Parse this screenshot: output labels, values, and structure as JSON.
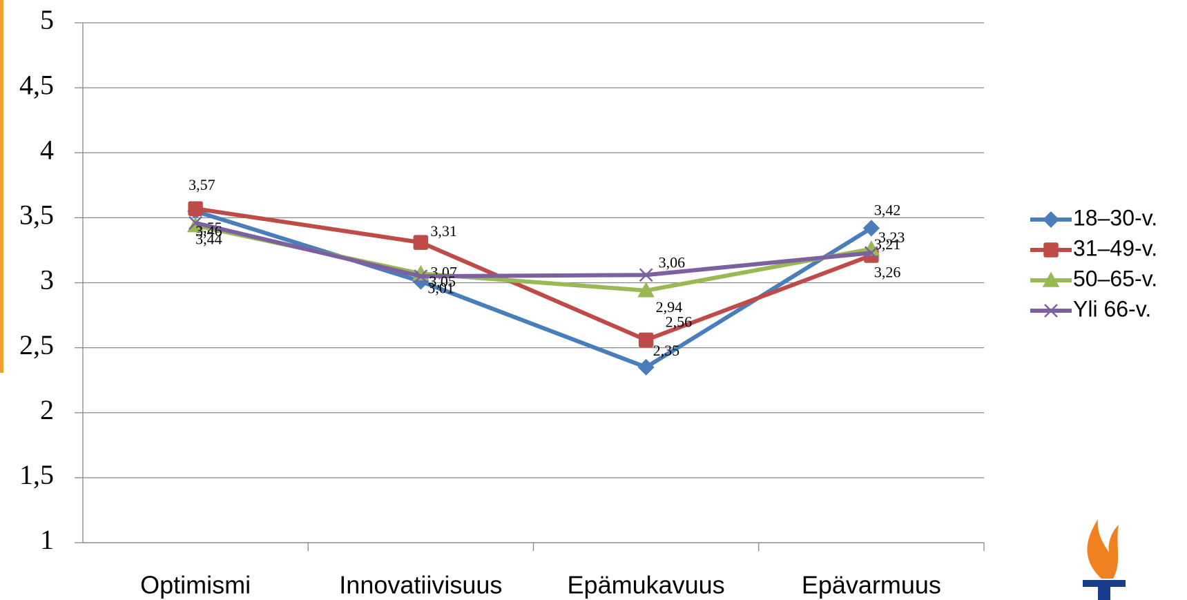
{
  "chart_data": {
    "type": "line",
    "categories": [
      "Optimismi",
      "Innovatiivisuus",
      "Epämukavuus",
      "Epävarmuus"
    ],
    "series": [
      {
        "name": "18–30-v.",
        "color": "#4a7ebb",
        "marker": "diamond",
        "values": [
          3.55,
          3.01,
          2.35,
          3.42
        ],
        "value_labels": [
          "3,55",
          "3,01",
          "2,35",
          "3,42"
        ]
      },
      {
        "name": "31–49-v.",
        "color": "#be4b48",
        "marker": "square",
        "values": [
          3.57,
          3.31,
          2.56,
          3.21
        ],
        "value_labels": [
          "3,57",
          "3,31",
          "2,56",
          "3,21"
        ]
      },
      {
        "name": "50–65-v.",
        "color": "#98b954",
        "marker": "triangle",
        "values": [
          3.44,
          3.07,
          2.94,
          3.26
        ],
        "value_labels": [
          "3,44",
          "3,07",
          "2,94",
          "3,26"
        ]
      },
      {
        "name": "Yli 66-v.",
        "color": "#7d60a0",
        "marker": "x",
        "values": [
          3.46,
          3.05,
          3.06,
          3.23
        ],
        "value_labels": [
          "3,46",
          "3,05",
          "3,06",
          "3,23"
        ]
      }
    ],
    "ylim": [
      1,
      5
    ],
    "yticks": [
      1,
      {
        "value": 1.5,
        "label": "1,5"
      },
      2,
      {
        "value": 2.5,
        "label": "2,5"
      },
      3,
      {
        "value": 3.5,
        "label": "3,5"
      },
      4,
      {
        "value": 4.5,
        "label": "4,5"
      },
      5
    ],
    "grid": true,
    "legend": "right"
  }
}
